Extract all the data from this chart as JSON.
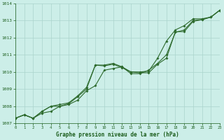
{
  "line1": [
    1007.3,
    1007.5,
    1007.3,
    1007.6,
    1007.7,
    1008.0,
    1008.1,
    1008.35,
    1008.9,
    1009.2,
    1010.1,
    1010.2,
    1010.3,
    1009.9,
    1009.9,
    1010.1,
    1010.5,
    1011.0,
    1012.3,
    1012.45,
    1013.0,
    1013.05,
    1013.2,
    1013.6
  ],
  "line2": [
    1007.3,
    1007.5,
    1007.3,
    1007.7,
    1008.0,
    1008.0,
    1008.15,
    1008.55,
    1009.0,
    1010.4,
    1010.35,
    1010.45,
    1010.25,
    1010.0,
    1009.95,
    1009.95,
    1010.45,
    1010.8,
    1012.35,
    1012.35,
    1012.95,
    1013.05,
    1013.2,
    1013.6
  ],
  "line3": [
    1007.3,
    1007.5,
    1007.3,
    1007.7,
    1008.0,
    1008.1,
    1008.2,
    1008.6,
    1009.1,
    1010.4,
    1010.4,
    1010.5,
    1010.3,
    1010.0,
    1010.0,
    1010.05,
    1010.8,
    1011.8,
    1012.45,
    1012.7,
    1013.1,
    1013.1,
    1013.2,
    1013.6
  ],
  "x": [
    0,
    1,
    2,
    3,
    4,
    5,
    6,
    7,
    8,
    9,
    10,
    11,
    12,
    13,
    14,
    15,
    16,
    17,
    18,
    19,
    20,
    21,
    22,
    23
  ],
  "ylim": [
    1007,
    1014
  ],
  "yticks": [
    1007,
    1008,
    1009,
    1010,
    1011,
    1012,
    1013,
    1014
  ],
  "xticks": [
    0,
    1,
    2,
    3,
    4,
    5,
    6,
    7,
    8,
    9,
    10,
    11,
    12,
    13,
    14,
    15,
    16,
    17,
    18,
    19,
    20,
    21,
    22,
    23
  ],
  "line_color": "#2d6a2d",
  "bg_color": "#cceee8",
  "grid_color": "#aad4cc",
  "xlabel": "Graphe pression niveau de la mer (hPa)",
  "xlabel_color": "#1a5c1a",
  "tick_color": "#1a5c1a",
  "markersize": 2.0
}
